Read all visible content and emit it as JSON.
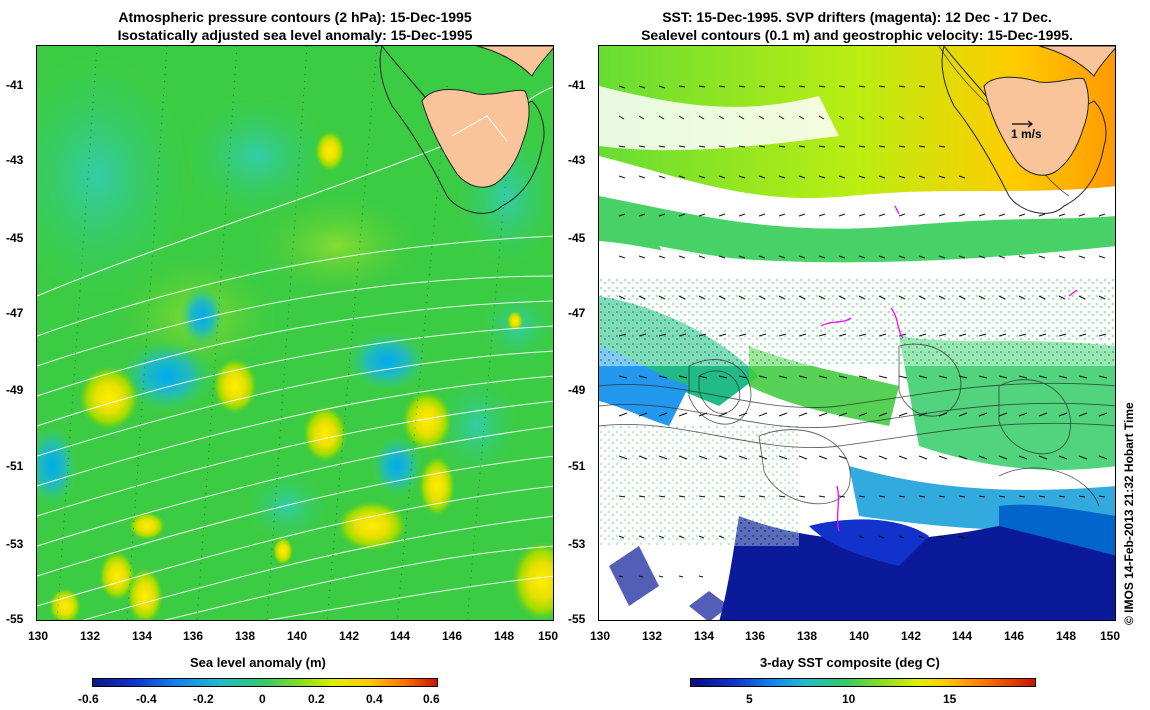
{
  "left_panel": {
    "title_line1": "Atmospheric pressure contours (2 hPa): 15-Dec-1995",
    "title_line2": "Isostatically adjusted sea level anomaly: 15-Dec-1995",
    "colorbar_title": "Sea level anomaly (m)",
    "colorbar_ticks": [
      "-0.6",
      "-0.4",
      "-0.2",
      "0",
      "0.2",
      "0.4",
      "0.6"
    ]
  },
  "right_panel": {
    "title_line1": "SST: 15-Dec-1995. SVP drifters (magenta): 12 Dec - 17 Dec.",
    "title_line2": "Sealevel contours (0.1 m) and geostrophic velocity: 15-Dec-1995.",
    "colorbar_title": "3-day SST composite (deg C)",
    "colorbar_ticks": [
      "5",
      "10",
      "15"
    ],
    "velocity_key": "1 m/s"
  },
  "axes": {
    "x_ticks": [
      "130",
      "132",
      "134",
      "136",
      "138",
      "140",
      "142",
      "144",
      "146",
      "148",
      "150"
    ],
    "y_ticks": [
      "-41",
      "-43",
      "-45",
      "-47",
      "-49",
      "-51",
      "-53",
      "-55"
    ]
  },
  "credit": "© IMOS 14-Feb-2013 21:32 Hobart Time",
  "colors": {
    "land": "#f9c49a",
    "sla_background": "#33cc33",
    "drifters": "#ff00ff"
  }
}
